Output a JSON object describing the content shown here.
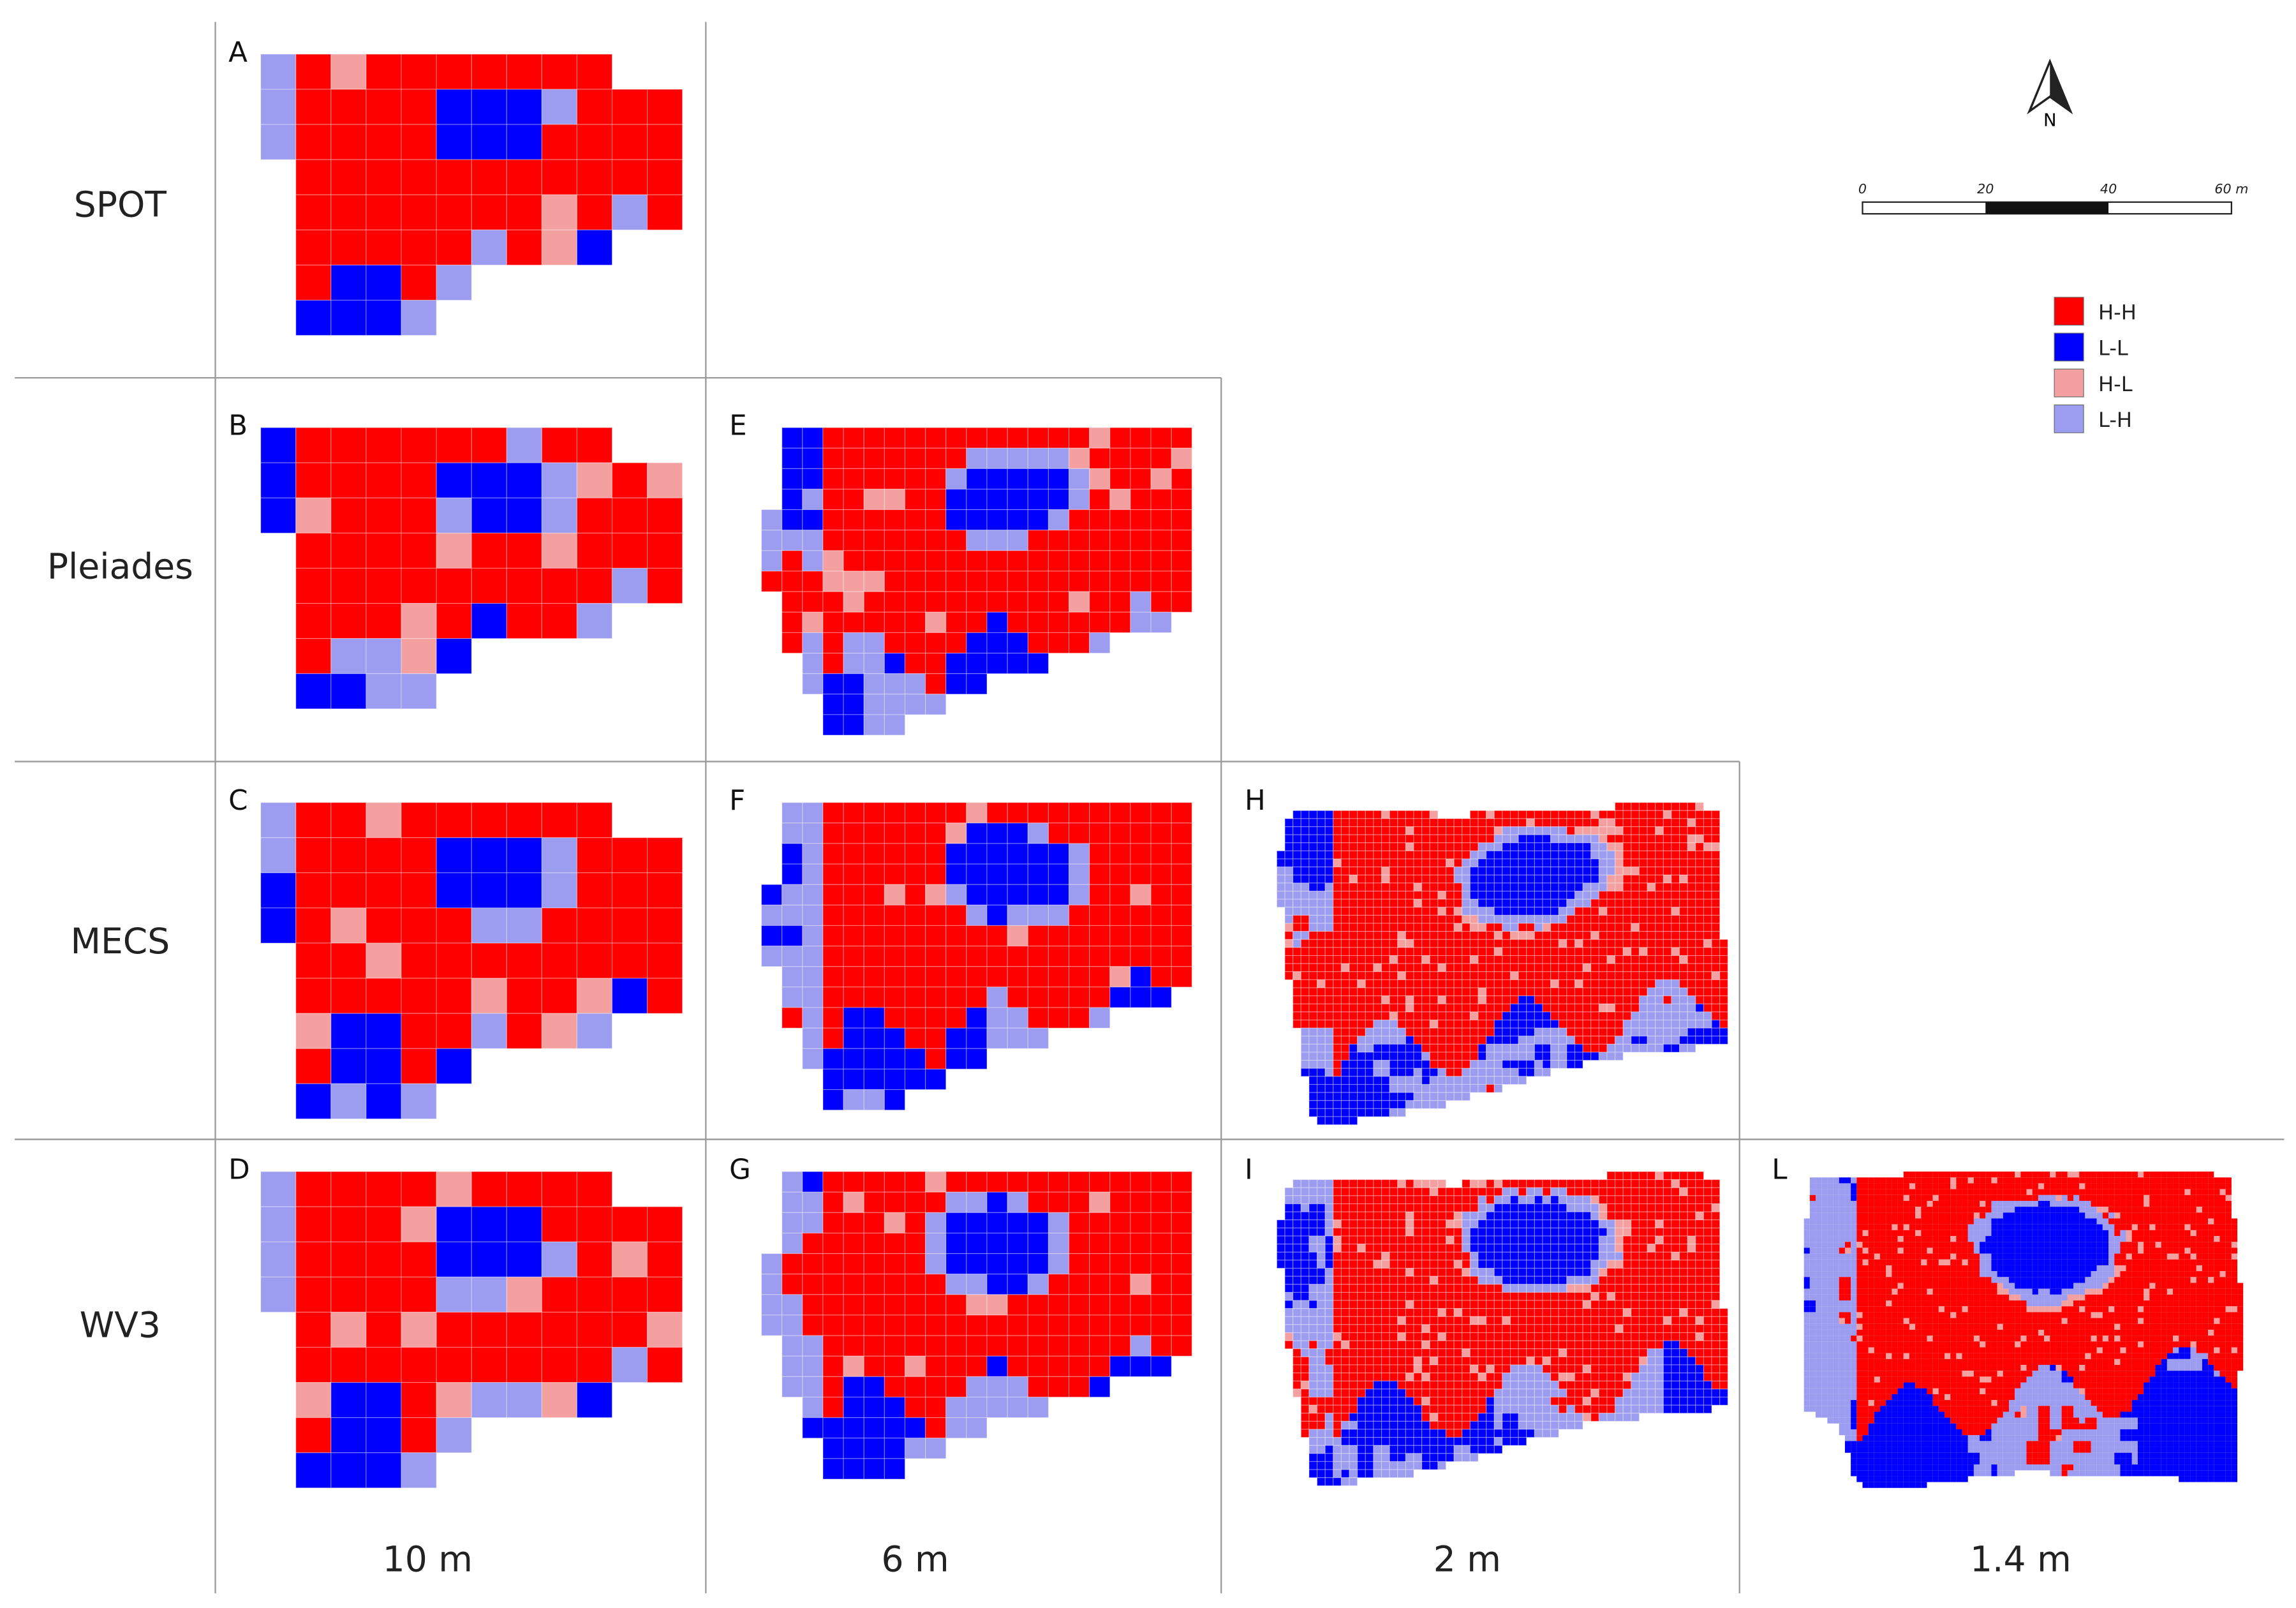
{
  "row_labels": [
    "SPOT",
    "Pleiades",
    "MECS",
    "WV3"
  ],
  "column_labels": [
    "10 m",
    "6 m",
    "2 m",
    "1.4 m"
  ],
  "panels": [
    {
      "letter": "A"
    },
    {
      "letter": "B"
    },
    {
      "letter": "C"
    },
    {
      "letter": "D"
    },
    {
      "letter": "E"
    },
    {
      "letter": "F"
    },
    {
      "letter": "G"
    },
    {
      "letter": "H"
    },
    {
      "letter": "I"
    },
    {
      "letter": "L"
    }
  ],
  "legend": [
    {
      "label": "H-H",
      "color": "#ff0000"
    },
    {
      "label": "L-L",
      "color": "#0000ff"
    },
    {
      "label": "H-L",
      "color": "#f5a0a0"
    },
    {
      "label": "L-H",
      "color": "#9c9cf0"
    }
  ],
  "scale_bar": {
    "labels": [
      "0",
      "20",
      "40",
      "60 m"
    ]
  },
  "north": "N"
}
